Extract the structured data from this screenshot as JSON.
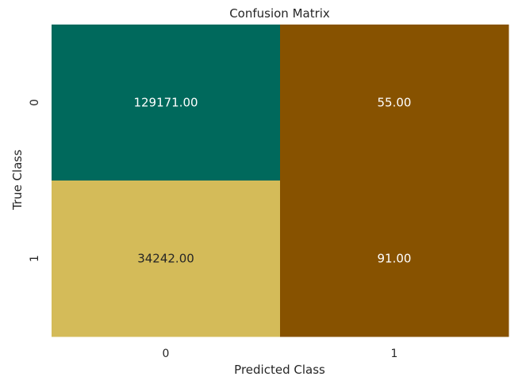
{
  "chart_data": {
    "type": "heatmap",
    "title": "Confusion Matrix",
    "xlabel": "Predicted Class",
    "ylabel": "True Class",
    "x_categories": [
      "0",
      "1"
    ],
    "y_categories": [
      "0",
      "1"
    ],
    "values": [
      [
        129171,
        55
      ],
      [
        34242,
        91
      ]
    ],
    "cell_labels": [
      [
        "129171.00",
        "55.00"
      ],
      [
        "34242.00",
        "91.00"
      ]
    ],
    "cell_colors": [
      [
        "#00695c",
        "#875200"
      ],
      [
        "#d4bb59",
        "#875200"
      ]
    ],
    "label_colors": [
      [
        "#ffffff",
        "#ffffff"
      ],
      [
        "#262626",
        "#ffffff"
      ]
    ],
    "colorbar": false,
    "grid": false
  }
}
